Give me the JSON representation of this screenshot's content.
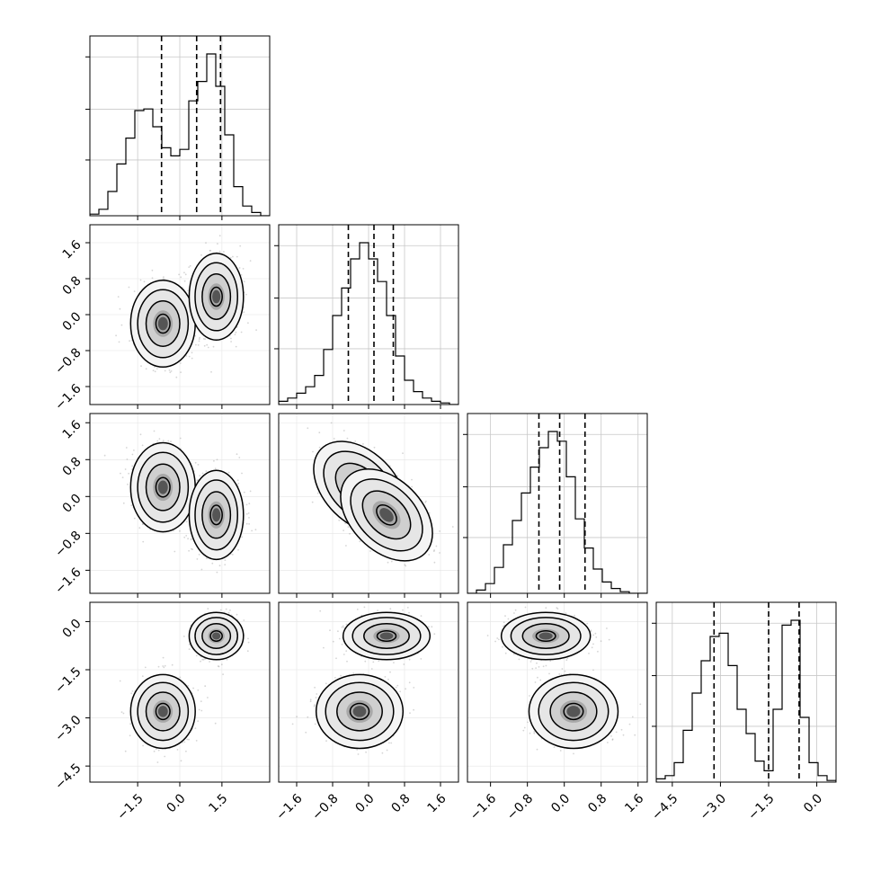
{
  "chart_data": {
    "type": "corner",
    "title": "",
    "grid": true,
    "parameters": [
      {
        "range": [
          -3.2,
          3.2
        ],
        "ticks": [
          -1.5,
          0.0,
          1.5
        ],
        "tick_labels": [
          "−1.5",
          "0.0",
          "1.5"
        ],
        "quantiles": [
          -0.65,
          0.6,
          1.45
        ]
      },
      {
        "range": [
          -2.0,
          2.0
        ],
        "ticks": [
          -1.6,
          -0.8,
          0.0,
          0.8,
          1.6
        ],
        "tick_labels": [
          "−1.6",
          "−0.8",
          "0.0",
          "0.8",
          "1.6"
        ],
        "quantiles": [
          -0.45,
          0.12,
          0.55
        ]
      },
      {
        "range": [
          -2.1,
          1.8
        ],
        "ticks": [
          -1.6,
          -0.8,
          0.0,
          0.8,
          1.6
        ],
        "tick_labels": [
          "−1.6",
          "−0.8",
          "0.0",
          "0.8",
          "1.6"
        ],
        "quantiles": [
          -0.55,
          -0.1,
          0.45
        ]
      },
      {
        "range": [
          -5.0,
          0.6
        ],
        "ticks": [
          -4.5,
          -3.0,
          -1.5,
          0.0
        ],
        "tick_labels": [
          "−4.5",
          "−3.0",
          "−1.5",
          "0.0"
        ],
        "quantiles": [
          -3.2,
          -1.5,
          -0.55
        ]
      }
    ],
    "histograms": [
      {
        "bins": 20,
        "counts": [
          0.01,
          0.04,
          0.15,
          0.32,
          0.48,
          0.65,
          0.66,
          0.55,
          0.42,
          0.37,
          0.41,
          0.71,
          0.83,
          1.0,
          0.8,
          0.5,
          0.18,
          0.06,
          0.02,
          0.0
        ]
      },
      {
        "bins": 20,
        "counts": [
          0.02,
          0.04,
          0.07,
          0.11,
          0.18,
          0.34,
          0.55,
          0.72,
          0.9,
          1.0,
          0.9,
          0.76,
          0.55,
          0.3,
          0.15,
          0.08,
          0.04,
          0.02,
          0.01,
          0.0
        ]
      },
      {
        "bins": 20,
        "counts": [
          0.0,
          0.02,
          0.06,
          0.16,
          0.3,
          0.45,
          0.62,
          0.78,
          0.9,
          1.0,
          0.94,
          0.72,
          0.46,
          0.28,
          0.15,
          0.07,
          0.03,
          0.01,
          0.0,
          0.0
        ]
      },
      {
        "bins": 20,
        "counts": [
          0.02,
          0.04,
          0.12,
          0.32,
          0.55,
          0.75,
          0.9,
          0.92,
          0.72,
          0.45,
          0.3,
          0.13,
          0.07,
          0.45,
          0.97,
          1.0,
          0.4,
          0.12,
          0.04,
          0.01
        ]
      }
    ],
    "components": [
      {
        "weight": 0.5,
        "mean": [
          -0.6,
          -0.2,
          0.2,
          -2.8
        ],
        "sd": [
          0.5,
          0.42,
          0.42,
          0.5
        ]
      },
      {
        "weight": 0.5,
        "mean": [
          1.3,
          0.4,
          -0.4,
          -0.45
        ],
        "sd": [
          0.42,
          0.42,
          0.42,
          0.32
        ]
      }
    ],
    "correlation_12": -0.45
  }
}
